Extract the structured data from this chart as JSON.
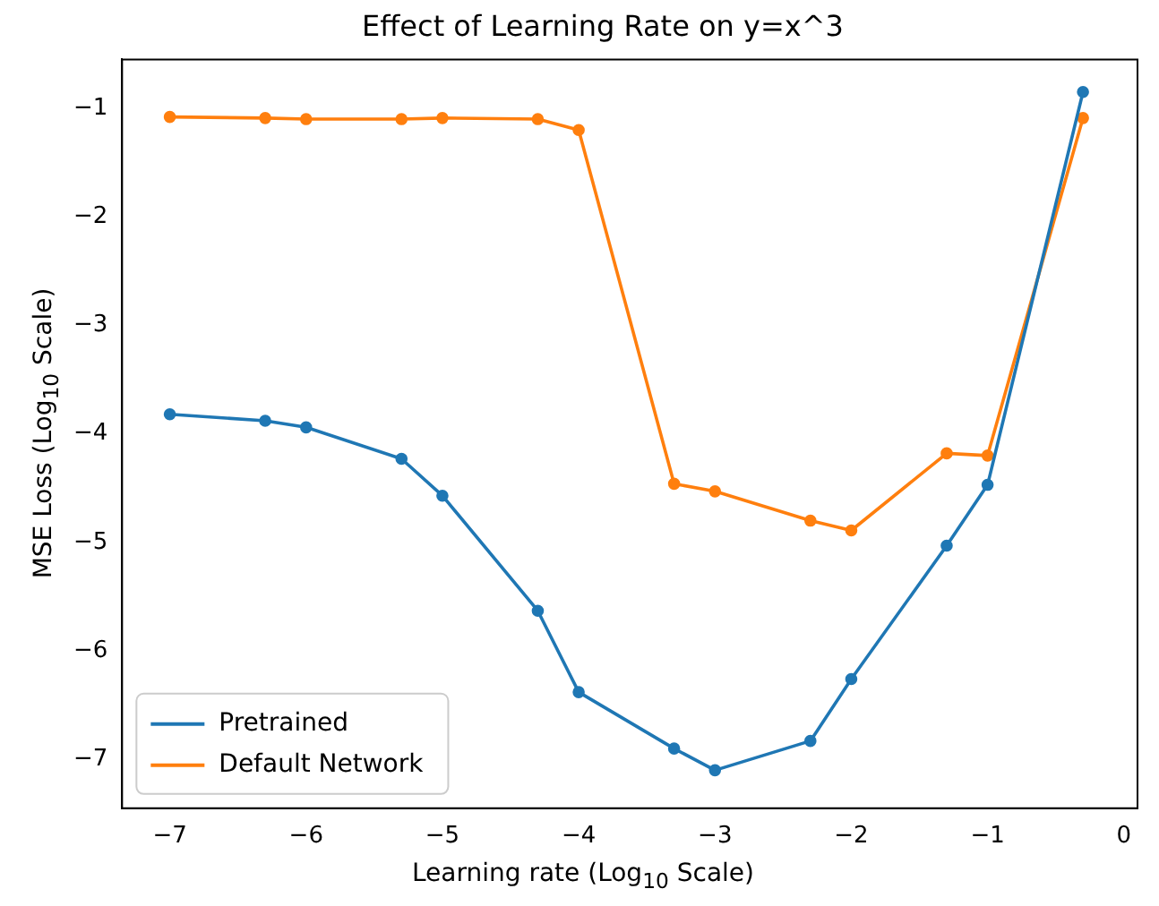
{
  "chart_data": {
    "type": "line",
    "title": "Effect of Learning Rate on y=x^3",
    "xlabel": "Learning rate (Log$_{10}$ Scale)",
    "ylabel": "MSE Loss (Log$_{10}$ Scale)",
    "x": [
      -7,
      -6.3,
      -6,
      -5.3,
      -5,
      -4.3,
      -4,
      -3.3,
      -3,
      -2.3,
      -2,
      -1.3,
      -1,
      -0.3
    ],
    "series": [
      {
        "name": "Pretrained",
        "color": "#1f77b4",
        "values": [
          -3.82,
          -3.88,
          -3.94,
          -4.23,
          -4.57,
          -5.63,
          -6.38,
          -6.9,
          -7.1,
          -6.83,
          -6.26,
          -5.03,
          -4.47,
          -0.85
        ]
      },
      {
        "name": "Default Network",
        "color": "#ff7f0e",
        "values": [
          -1.08,
          -1.09,
          -1.1,
          -1.1,
          -1.09,
          -1.1,
          -1.2,
          -4.46,
          -4.53,
          -4.8,
          -4.89,
          -4.18,
          -4.2,
          -1.09
        ]
      }
    ],
    "xlim": [
      -7.35,
      0.1
    ],
    "xticks": [
      -7,
      -6,
      -5,
      -4,
      -3,
      -2,
      -1,
      0
    ],
    "ylim": [
      -7.45,
      -0.55
    ],
    "yticks": [
      -7,
      -6,
      -5,
      -4,
      -3,
      -2,
      -1
    ],
    "grid": false,
    "legend": "bottom left",
    "marker": "circle",
    "line_style": "solid"
  }
}
